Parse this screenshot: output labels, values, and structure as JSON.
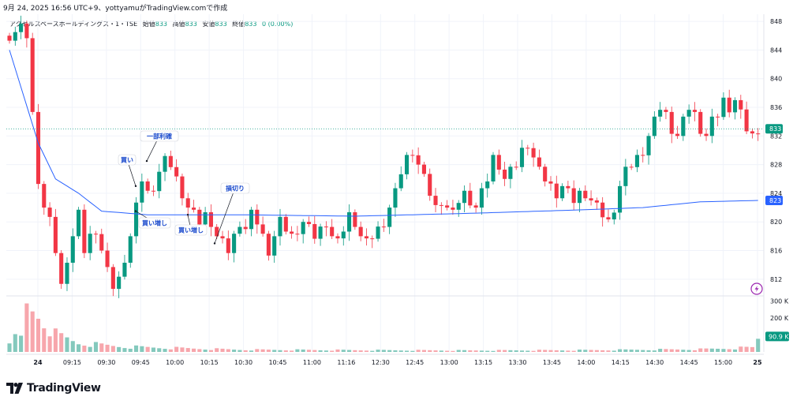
{
  "header": {
    "text": "9月 24, 2025 16:56 UTC+9、yottyamuがTradingView.comで作成"
  },
  "symbol": {
    "name": "アクセルスペースホールディングス・1・TSE",
    "open_label": "始値",
    "open": "833",
    "high_label": "高値",
    "high": "833",
    "low_label": "安値",
    "low": "833",
    "close_label": "終値",
    "close": "833",
    "change": "0 (0.00%)"
  },
  "logo": {
    "text": "TradingView",
    "icon": "tradingview-logo-icon"
  },
  "colors": {
    "up": "#089981",
    "down": "#f23645",
    "vwap": "#2962ff",
    "volume_up": "#84c9bd",
    "volume_down": "#f7a6ac",
    "annotation": "#1848cc"
  },
  "chart_data": {
    "type": "candlestick",
    "price_axis": {
      "min": 810,
      "max": 849,
      "ticks": [
        "848",
        "844",
        "840",
        "836",
        "832",
        "828",
        "824",
        "820",
        "816",
        "812"
      ]
    },
    "volume_axis": {
      "max": 320000,
      "ticks": [
        "300 K",
        "200 K"
      ]
    },
    "time_labels": [
      "24",
      "09:15",
      "09:30",
      "09:45",
      "10:00",
      "10:15",
      "10:30",
      "10:45",
      "11:00",
      "11:16",
      "12:30",
      "12:45",
      "13:00",
      "13:15",
      "13:30",
      "13:45",
      "14:00",
      "14:15",
      "14:30",
      "14:45",
      "15:00",
      "25"
    ],
    "last_price": {
      "value": 833,
      "label": "833"
    },
    "vwap_value": {
      "value": 823,
      "label": "823"
    },
    "last_volume": {
      "value": 90900,
      "label": "90.9 K"
    },
    "annotations": [
      {
        "text": "買い",
        "price": 825
      },
      {
        "text": "一部利確",
        "price": 828.5
      },
      {
        "text": "買い増し",
        "price": 821.5
      },
      {
        "text": "買い増し",
        "price": 821
      },
      {
        "text": "損切り",
        "price": 817
      }
    ],
    "price_path": [
      [
        0,
        846
      ],
      [
        2,
        847
      ],
      [
        3,
        846
      ],
      [
        4,
        835
      ],
      [
        5,
        826
      ],
      [
        6,
        822
      ],
      [
        7,
        820
      ],
      [
        8,
        816
      ],
      [
        9,
        811
      ],
      [
        10,
        815
      ],
      [
        11,
        818
      ],
      [
        12,
        821
      ],
      [
        13,
        816
      ],
      [
        14,
        818
      ],
      [
        15,
        819
      ],
      [
        16,
        816
      ],
      [
        17,
        813
      ],
      [
        18,
        811
      ],
      [
        19,
        812
      ],
      [
        20,
        815
      ],
      [
        21,
        818
      ],
      [
        22,
        822
      ],
      [
        23,
        826
      ],
      [
        24,
        824
      ],
      [
        25,
        825
      ],
      [
        26,
        827
      ],
      [
        27,
        828.5
      ],
      [
        28,
        828
      ],
      [
        29,
        826
      ],
      [
        30,
        824
      ],
      [
        31,
        822
      ],
      [
        32,
        821
      ],
      [
        33,
        820
      ],
      [
        34,
        821
      ],
      [
        35,
        820
      ],
      [
        36,
        818
      ],
      [
        37,
        817
      ],
      [
        38,
        816
      ],
      [
        39,
        818
      ],
      [
        40,
        820
      ],
      [
        41,
        819
      ],
      [
        42,
        821
      ],
      [
        43,
        820
      ],
      [
        44,
        818
      ],
      [
        45,
        816
      ],
      [
        46,
        818
      ],
      [
        47,
        820
      ],
      [
        48,
        819
      ],
      [
        49,
        818
      ],
      [
        50,
        819
      ],
      [
        51,
        820
      ],
      [
        52,
        819
      ],
      [
        53,
        818
      ],
      [
        54,
        819
      ],
      [
        55,
        820
      ],
      [
        56,
        818
      ],
      [
        57,
        817
      ],
      [
        58,
        819
      ],
      [
        59,
        821
      ],
      [
        60,
        820
      ],
      [
        61,
        818
      ],
      [
        62,
        817
      ],
      [
        63,
        818
      ],
      [
        64,
        819
      ],
      [
        65,
        820
      ],
      [
        66,
        822
      ],
      [
        67,
        824
      ],
      [
        68,
        827
      ],
      [
        69,
        829
      ],
      [
        70,
        830
      ],
      [
        71,
        828
      ],
      [
        72,
        826
      ],
      [
        73,
        824
      ],
      [
        74,
        822
      ],
      [
        75,
        823
      ],
      [
        76,
        822
      ],
      [
        77,
        821
      ],
      [
        78,
        823
      ],
      [
        79,
        824
      ],
      [
        80,
        823
      ],
      [
        81,
        822
      ],
      [
        82,
        824
      ],
      [
        83,
        826
      ],
      [
        84,
        829
      ],
      [
        85,
        828
      ],
      [
        86,
        826
      ],
      [
        87,
        827
      ],
      [
        88,
        828
      ],
      [
        89,
        830
      ],
      [
        90,
        831
      ],
      [
        91,
        829
      ],
      [
        92,
        827
      ],
      [
        93,
        826
      ],
      [
        94,
        825
      ],
      [
        95,
        824
      ],
      [
        96,
        825
      ],
      [
        97,
        824
      ],
      [
        98,
        823
      ],
      [
        99,
        824
      ],
      [
        100,
        824
      ],
      [
        101,
        823
      ],
      [
        102,
        822
      ],
      [
        103,
        821
      ],
      [
        104,
        820
      ],
      [
        105,
        822
      ],
      [
        106,
        825
      ],
      [
        107,
        827
      ],
      [
        108,
        828
      ],
      [
        109,
        829
      ],
      [
        110,
        830
      ],
      [
        111,
        832
      ],
      [
        112,
        834
      ],
      [
        113,
        836
      ],
      [
        114,
        835
      ],
      [
        115,
        833
      ],
      [
        116,
        832
      ],
      [
        117,
        834
      ],
      [
        118,
        836
      ],
      [
        119,
        835
      ],
      [
        120,
        833
      ],
      [
        121,
        832
      ],
      [
        122,
        834
      ],
      [
        123,
        835
      ],
      [
        124,
        837
      ],
      [
        125,
        836
      ],
      [
        126,
        837
      ],
      [
        127,
        835
      ],
      [
        128,
        833
      ],
      [
        129,
        832
      ],
      [
        130,
        833
      ]
    ],
    "vwap_path": [
      [
        0,
        844
      ],
      [
        5,
        831
      ],
      [
        8,
        826
      ],
      [
        12,
        824
      ],
      [
        16,
        821.5
      ],
      [
        24,
        821
      ],
      [
        30,
        821
      ],
      [
        40,
        821
      ],
      [
        60,
        820.8
      ],
      [
        80,
        821.2
      ],
      [
        100,
        821.7
      ],
      [
        110,
        822
      ],
      [
        120,
        822.8
      ],
      [
        130,
        823
      ]
    ],
    "volume_path": [
      [
        3,
        300000
      ],
      [
        5,
        260000
      ],
      [
        8,
        120000
      ],
      [
        12,
        60000
      ],
      [
        20,
        35000
      ],
      [
        30,
        25000
      ],
      [
        40,
        15000
      ],
      [
        60,
        12000
      ],
      [
        80,
        10000
      ],
      [
        100,
        12000
      ],
      [
        110,
        15000
      ],
      [
        120,
        18000
      ],
      [
        129,
        30000
      ],
      [
        130,
        90900
      ]
    ]
  }
}
